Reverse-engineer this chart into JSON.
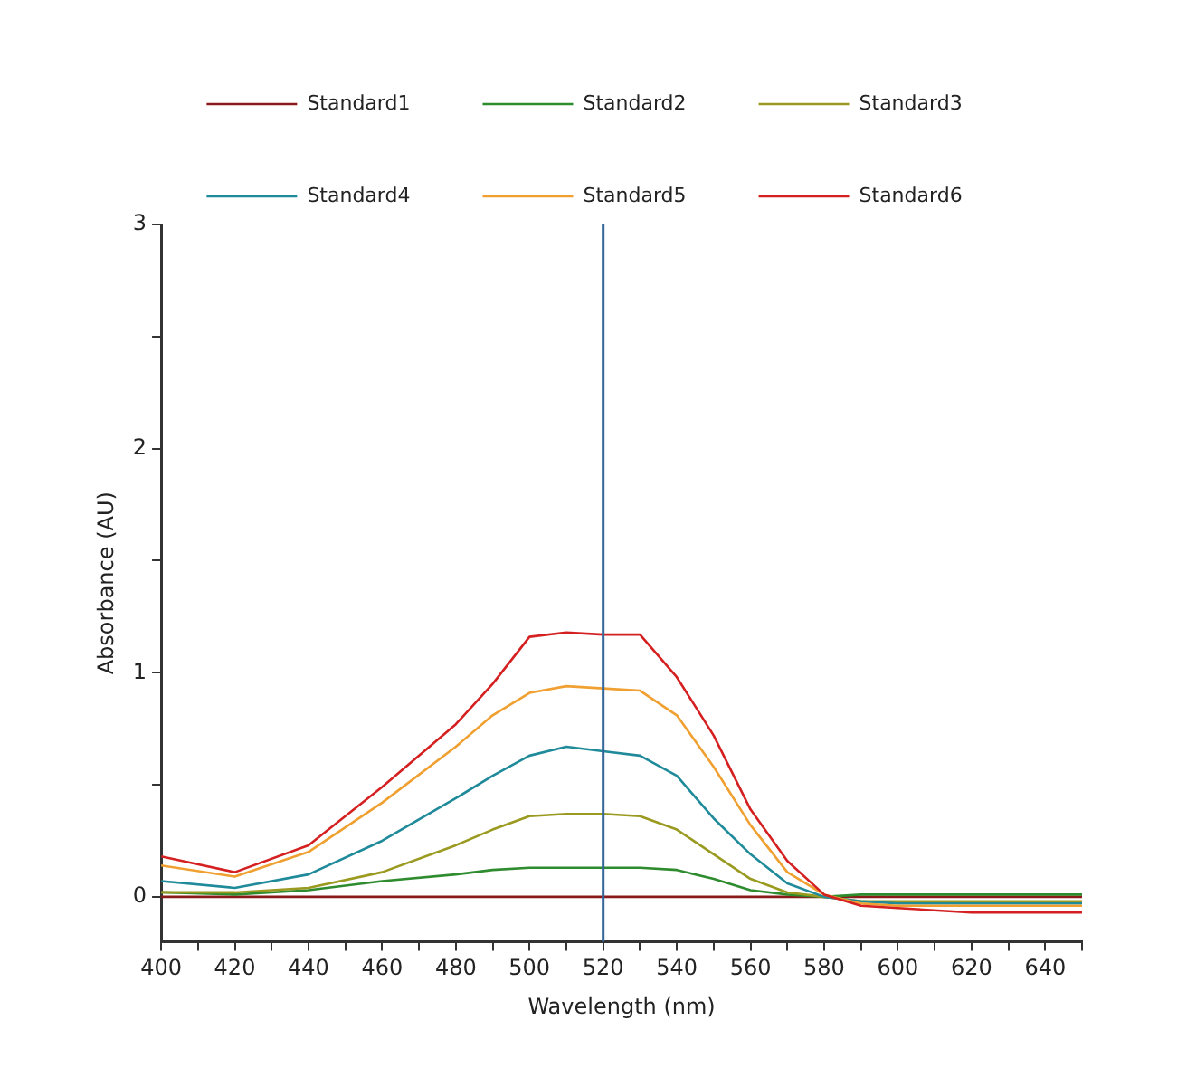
{
  "chart_data": {
    "type": "line",
    "xlabel": "Wavelength (nm)",
    "ylabel": "Absorbance (AU)",
    "x": [
      400,
      420,
      440,
      460,
      480,
      490,
      500,
      510,
      520,
      530,
      540,
      550,
      560,
      570,
      580,
      590,
      600,
      620,
      650
    ],
    "series": [
      {
        "name": "Standard1",
        "color": "#8b1a1a",
        "values": [
          0,
          0,
          0,
          0,
          0,
          0,
          0,
          0,
          0,
          0,
          0,
          0,
          0,
          0,
          0,
          0,
          0,
          0,
          0
        ]
      },
      {
        "name": "Standard2",
        "color": "#2e8b2e",
        "values": [
          0.02,
          0.01,
          0.03,
          0.07,
          0.1,
          0.12,
          0.13,
          0.13,
          0.13,
          0.13,
          0.12,
          0.08,
          0.03,
          0.01,
          0,
          0.01,
          0.01,
          0.01,
          0.01
        ]
      },
      {
        "name": "Standard3",
        "color": "#9a9a20",
        "values": [
          0.02,
          0.02,
          0.04,
          0.11,
          0.23,
          0.3,
          0.36,
          0.37,
          0.37,
          0.36,
          0.3,
          0.19,
          0.08,
          0.02,
          0,
          -0.02,
          -0.02,
          -0.02,
          -0.02
        ]
      },
      {
        "name": "Standard4",
        "color": "#1f8a9a",
        "values": [
          0.07,
          0.04,
          0.1,
          0.25,
          0.44,
          0.54,
          0.63,
          0.67,
          0.65,
          0.63,
          0.54,
          0.35,
          0.19,
          0.06,
          0,
          -0.02,
          -0.03,
          -0.03,
          -0.03
        ]
      },
      {
        "name": "Standard5",
        "color": "#f0a030",
        "values": [
          0.14,
          0.09,
          0.2,
          0.42,
          0.67,
          0.81,
          0.91,
          0.94,
          0.93,
          0.92,
          0.81,
          0.58,
          0.32,
          0.11,
          0.01,
          -0.03,
          -0.04,
          -0.04,
          -0.04
        ]
      },
      {
        "name": "Standard6",
        "color": "#d42020",
        "values": [
          0.18,
          0.11,
          0.23,
          0.49,
          0.77,
          0.95,
          1.16,
          1.18,
          1.17,
          1.17,
          0.98,
          0.72,
          0.39,
          0.16,
          0.01,
          -0.04,
          -0.05,
          -0.07,
          -0.07
        ]
      }
    ],
    "xlim": [
      400,
      650
    ],
    "xticks": [
      400,
      {
        "value": 410,
        "label": null
      },
      420,
      {
        "value": 430,
        "label": null
      },
      440,
      {
        "value": 450,
        "label": null
      },
      460,
      {
        "value": 470,
        "label": null
      },
      480,
      {
        "value": 490,
        "label": null
      },
      500,
      {
        "value": 510,
        "label": null
      },
      520,
      {
        "value": 530,
        "label": null
      },
      540,
      {
        "value": 550,
        "label": null
      },
      560,
      {
        "value": 570,
        "label": null
      },
      580,
      {
        "value": 590,
        "label": null
      },
      600,
      {
        "value": 610,
        "label": null
      },
      620,
      {
        "value": 630,
        "label": null
      },
      640,
      {
        "value": 650,
        "label": null
      }
    ],
    "ylim": [
      -0.2,
      3
    ],
    "yticks": [
      0,
      {
        "value": 0.5,
        "label": null
      },
      1,
      {
        "value": 1.5,
        "label": null
      },
      2,
      {
        "value": 2.5,
        "label": null
      },
      3
    ],
    "ref_lines": [
      {
        "axis": "x",
        "value": 520,
        "color": "#336699"
      }
    ],
    "grid": false,
    "legend": "top",
    "marker": "none",
    "line_style": "solid"
  }
}
